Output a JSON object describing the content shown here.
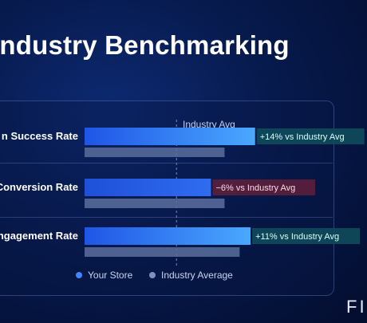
{
  "title": "Industry Benchmarking",
  "brand": "FI",
  "chart_data": {
    "type": "bar",
    "orientation": "horizontal",
    "title": "Industry Benchmarking",
    "reference_line_label": "Industry Avg",
    "categories": [
      "Success Rate",
      "Conversion Rate",
      "Engagement Rate"
    ],
    "category_labels": [
      "n Success Rate",
      "Conversion Rate",
      "Engagement Rate"
    ],
    "series": [
      {
        "name": "Your Store",
        "values": [
          114,
          94,
          111
        ],
        "color": "#2f72ff"
      },
      {
        "name": "Industry Average",
        "values": [
          100,
          100,
          100
        ],
        "color": "#5b6e9c"
      }
    ],
    "annotations": [
      {
        "text": "+14% vs Industry Avg",
        "sentiment": "positive"
      },
      {
        "text": "−6% vs Industry Avg",
        "sentiment": "negative"
      },
      {
        "text": "+11% vs Industry Avg",
        "sentiment": "positive"
      }
    ],
    "legend": {
      "placement": "bottom-center",
      "items": [
        "Your Store",
        "Industry Average"
      ]
    },
    "grid": false
  },
  "colors": {
    "positive_bg": "#0f4a5a",
    "positive_text": "#d9fff6",
    "negative_bg": "#5a1f3c",
    "negative_text": "#ffd9e6",
    "reference_line": "#8ea6d8"
  }
}
